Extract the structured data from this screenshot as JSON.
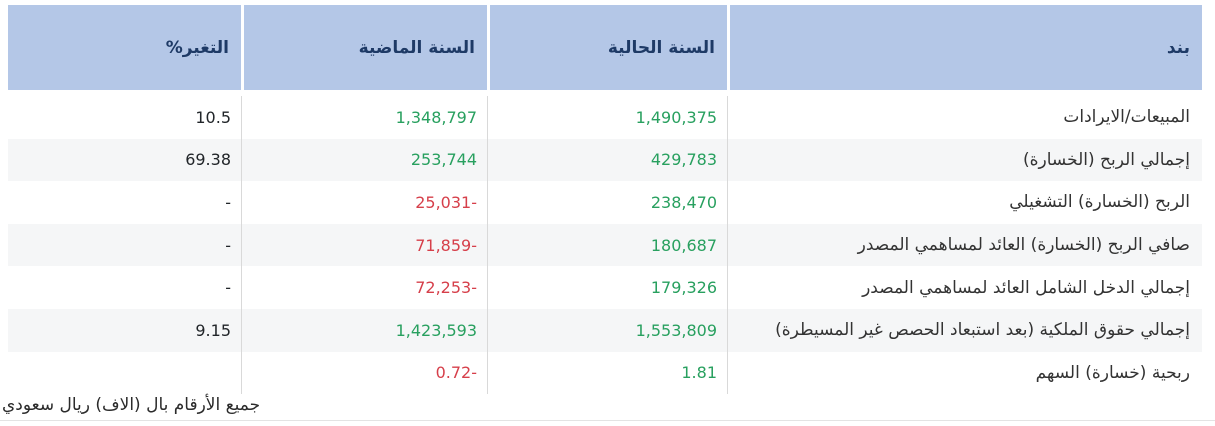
{
  "colors": {
    "header_bg": "#b4c7e7",
    "header_text": "#1e3a66",
    "positive": "#28a05f",
    "negative": "#d63f4a",
    "row_alt_bg": "#f5f6f7",
    "divider": "#d9d9d9"
  },
  "table": {
    "columns": {
      "item": "بند",
      "current_year": "السنة الحالية",
      "previous_year": "السنة الماضية",
      "change_pct": "التغير%"
    },
    "rows": [
      {
        "item": "المبيعات/الايرادات",
        "current": "1,490,375",
        "current_class": "pos",
        "previous": "1,348,797",
        "previous_class": "pos",
        "change": "10.5"
      },
      {
        "item": "إجمالي الربح (الخسارة)",
        "current": "429,783",
        "current_class": "pos",
        "previous": "253,744",
        "previous_class": "pos",
        "change": "69.38"
      },
      {
        "item": "الربح (الخسارة) التشغيلي",
        "current": "238,470",
        "current_class": "pos",
        "previous": "25,031-",
        "previous_class": "neg",
        "change": "-"
      },
      {
        "item": "صافي الربح (الخسارة) العائد لمساهمي المصدر",
        "current": "180,687",
        "current_class": "pos",
        "previous": "71,859-",
        "previous_class": "neg",
        "change": "-"
      },
      {
        "item": "إجمالي الدخل الشامل العائد لمساهمي المصدر",
        "current": "179,326",
        "current_class": "pos",
        "previous": "72,253-",
        "previous_class": "neg",
        "change": "-"
      },
      {
        "item": "إجمالي حقوق الملكية (بعد استبعاد الحصص غير المسيطرة)",
        "current": "1,553,809",
        "current_class": "pos",
        "previous": "1,423,593",
        "previous_class": "pos",
        "change": "9.15"
      },
      {
        "item": "ربحية (خسارة) السهم",
        "current": "1.81",
        "current_class": "pos",
        "previous": "0.72-",
        "previous_class": "neg",
        "change": ""
      }
    ],
    "footnote": "جميع الأرقام بال (الاف) ريال سعودي"
  }
}
